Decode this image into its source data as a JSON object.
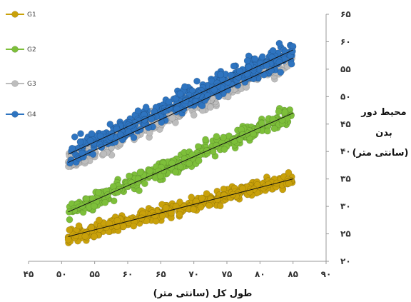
{
  "chart_data": {
    "type": "scatter",
    "title": "",
    "xlabel": "طول کل (سانتی متر)",
    "ylabel_lines": [
      "محیط دور",
      "بدن",
      "(سانتی متر)"
    ],
    "xlim": [
      45,
      90
    ],
    "ylim": [
      20,
      65
    ],
    "x_ticks": [
      45,
      50,
      55,
      60,
      65,
      70,
      75,
      80,
      85,
      90
    ],
    "x_tick_labels": [
      "۴۵",
      "۵۰",
      "۵۵",
      "۶۰",
      "۶۵",
      "۷۰",
      "۷۵",
      "۸۰",
      "۸۵",
      "۹۰"
    ],
    "y_ticks": [
      20,
      25,
      30,
      35,
      40,
      45,
      50,
      55,
      60,
      65
    ],
    "y_tick_labels": [
      "۲۰",
      "۲۵",
      "۳۰",
      "۳۵",
      "۴۰",
      "۴۵",
      "۵۰",
      "۵۵",
      "۶۰",
      "۶۵"
    ],
    "grid": false,
    "legend_position": "left",
    "trendlines": true,
    "series": [
      {
        "name": "G1",
        "color": "#C9A10A",
        "x_range": [
          51,
          85
        ],
        "trend": [
          [
            51,
            24.5
          ],
          [
            85,
            35
          ]
        ],
        "band": 1.2
      },
      {
        "name": "G2",
        "color": "#7DBF3A",
        "x_range": [
          51,
          85
        ],
        "trend": [
          [
            51,
            29
          ],
          [
            85,
            47
          ]
        ],
        "band": 1.6
      },
      {
        "name": "G3",
        "color": "#BDBDBD",
        "x_range": [
          51,
          85
        ],
        "trend": [
          [
            51,
            38
          ],
          [
            85,
            57
          ]
        ],
        "band": 1.8
      },
      {
        "name": "G4",
        "color": "#2E74C0",
        "x_range": [
          51,
          85
        ],
        "trend": [
          [
            51,
            39.5
          ],
          [
            85,
            58.5
          ]
        ],
        "band": 2.2
      }
    ]
  }
}
